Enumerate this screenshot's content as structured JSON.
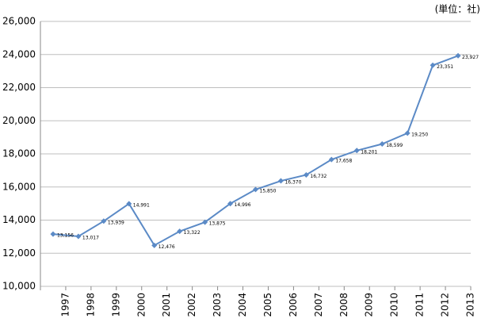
{
  "chart_data": {
    "type": "line",
    "annotation": "(単位：社)",
    "categories": [
      "1997",
      "1998",
      "1999",
      "2000",
      "2001",
      "2002",
      "2003",
      "2004",
      "2005",
      "2006",
      "2007",
      "2008",
      "2009",
      "2010",
      "2011",
      "2012",
      "2013"
    ],
    "series": [
      {
        "name": null,
        "color": "#5b8ac6",
        "values": [
          13156,
          13017,
          13939,
          14991,
          12476,
          13322,
          13875,
          14996,
          15850,
          16370,
          16732,
          17658,
          18201,
          18599,
          19250,
          23351,
          23927
        ],
        "value_labels": [
          "13,156",
          "13,017",
          "13,939",
          "14,991",
          "12,476",
          "13,322",
          "13,875",
          "14,996",
          "15,850",
          "16,370",
          "16,732",
          "17,658",
          "18,201",
          "18,599",
          "19,250",
          "23,351",
          "23,927"
        ]
      }
    ],
    "ylim": [
      10000,
      26000
    ],
    "yticks": [
      {
        "value": 10000,
        "label": "10,000"
      },
      {
        "value": 12000,
        "label": "12,000"
      },
      {
        "value": 14000,
        "label": "14,000"
      },
      {
        "value": 16000,
        "label": "16,000"
      },
      {
        "value": 18000,
        "label": "18,000"
      },
      {
        "value": 20000,
        "label": "20,000"
      },
      {
        "value": 22000,
        "label": "22,000"
      },
      {
        "value": 24000,
        "label": "24,000"
      },
      {
        "value": 26000,
        "label": "26,000"
      }
    ],
    "grid": true
  }
}
